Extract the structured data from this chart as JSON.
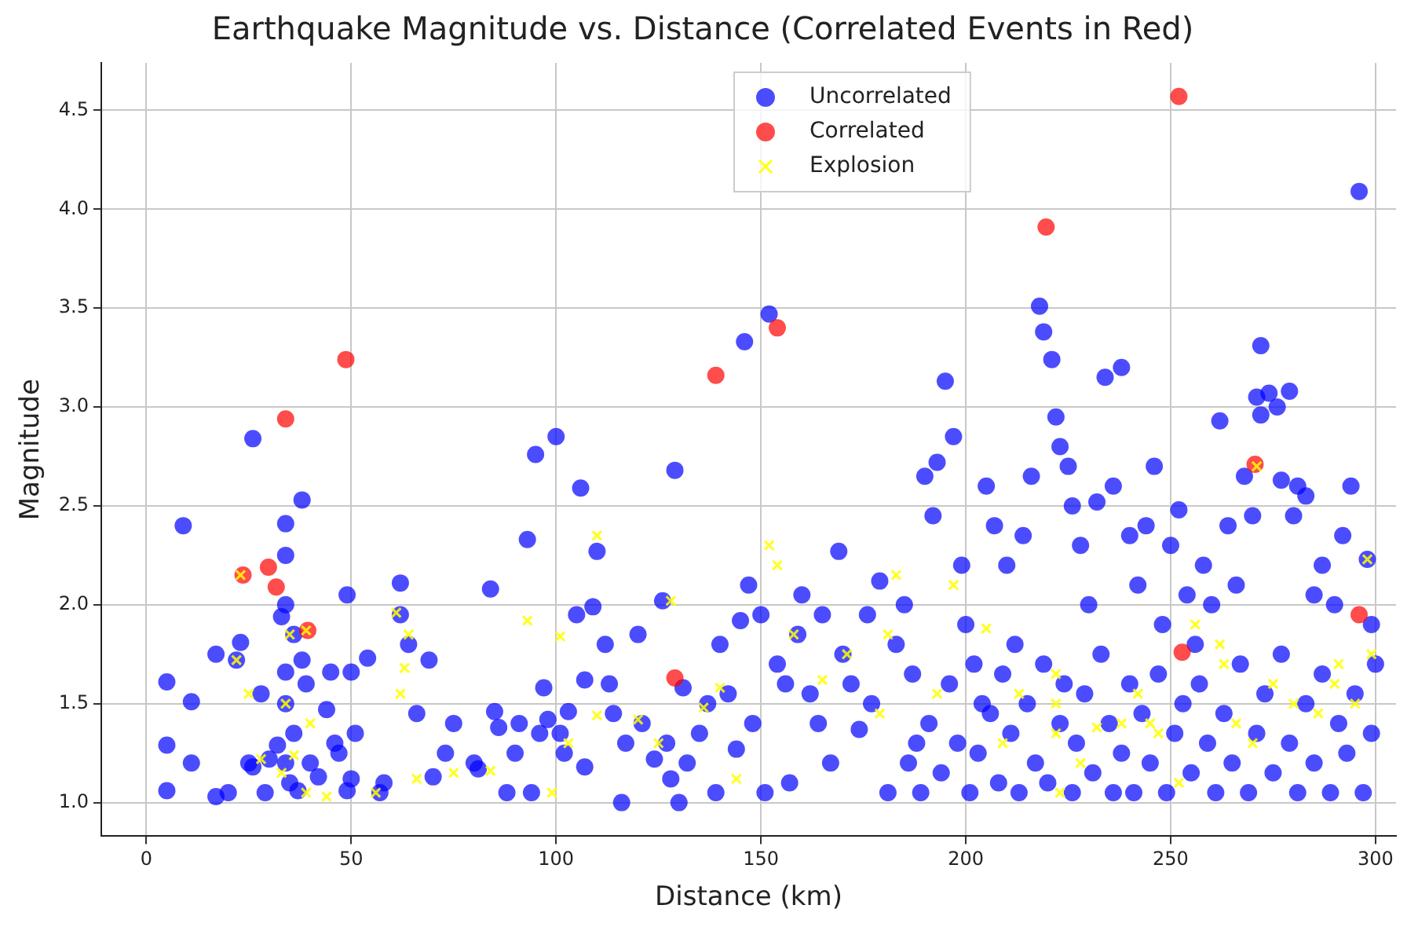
{
  "chart_data": {
    "type": "scatter",
    "title": "Earthquake Magnitude vs. Distance (Correlated Events in Red)",
    "xlabel": "Distance (km)",
    "ylabel": "Magnitude",
    "xlim": [
      -11,
      305
    ],
    "ylim": [
      0.83,
      4.74
    ],
    "xticks": [
      0,
      50,
      100,
      150,
      200,
      250,
      300
    ],
    "yticks": [
      {
        "value": 1,
        "label": "1.0"
      },
      1.5,
      {
        "value": 2,
        "label": "2.0"
      },
      2.5,
      {
        "value": 3,
        "label": "3.0"
      },
      3.5,
      {
        "value": 4,
        "label": "4.0"
      },
      4.5
    ],
    "grid": true,
    "legend": "top",
    "series": [
      {
        "name": "Uncorrelated",
        "color": "#0000ff",
        "marker": "circle",
        "x": [
          5,
          5,
          5,
          9,
          11,
          11,
          17,
          17,
          20,
          22,
          23,
          25,
          26,
          26,
          28,
          29,
          30,
          32,
          33,
          34,
          34,
          34,
          34,
          34,
          34,
          35,
          36,
          36,
          37,
          38,
          38,
          39,
          40,
          42,
          44,
          45,
          46,
          47,
          49,
          49,
          50,
          50,
          51,
          54,
          57,
          58,
          62,
          62,
          64,
          66,
          69,
          70,
          73,
          75,
          80,
          81,
          84,
          85,
          86,
          88,
          90,
          91,
          93,
          94,
          95,
          96,
          97,
          98,
          100,
          101,
          102,
          103,
          105,
          106,
          107,
          107,
          109,
          110,
          112,
          113,
          114,
          116,
          117,
          120,
          121,
          124,
          126,
          127,
          128,
          129,
          130,
          131,
          132,
          135,
          137,
          139,
          140,
          142,
          144,
          145,
          146,
          147,
          148,
          150,
          151,
          152,
          154,
          156,
          157,
          159,
          160,
          162,
          164,
          165,
          167,
          169,
          170,
          172,
          174,
          176,
          177,
          179,
          181,
          183,
          185,
          187,
          188,
          190,
          192,
          193,
          195,
          197,
          199,
          200,
          202,
          204,
          205,
          207,
          210,
          212,
          214,
          216,
          218,
          219,
          221,
          222,
          223,
          225,
          226,
          228,
          230,
          232,
          234,
          236,
          238,
          240,
          242,
          244,
          246,
          248,
          250,
          252,
          254,
          256,
          258,
          260,
          262,
          264,
          266,
          268,
          270,
          271,
          272,
          272,
          274,
          276,
          277,
          279,
          280,
          281,
          283,
          285,
          287,
          290,
          292,
          294,
          296,
          298,
          299,
          186,
          189,
          191,
          194,
          196,
          198,
          201,
          203,
          206,
          208,
          209,
          211,
          213,
          215,
          217,
          219,
          220,
          223,
          224,
          226,
          227,
          229,
          231,
          233,
          235,
          236,
          238,
          240,
          241,
          243,
          245,
          247,
          249,
          251,
          253,
          255,
          257,
          259,
          261,
          263,
          265,
          267,
          269,
          271,
          273,
          275,
          277,
          279,
          281,
          283,
          285,
          287,
          289,
          291,
          293,
          295,
          297,
          299,
          300
        ],
        "values": [
          1.61,
          1.29,
          1.06,
          2.4,
          1.51,
          1.2,
          1.75,
          1.03,
          1.05,
          1.72,
          1.81,
          1.2,
          1.18,
          2.84,
          1.55,
          1.05,
          1.22,
          1.29,
          1.94,
          2.41,
          2.25,
          2,
          1.66,
          1.5,
          1.2,
          1.1,
          1.35,
          1.85,
          1.06,
          2.53,
          1.72,
          1.6,
          1.2,
          1.13,
          1.47,
          1.66,
          1.3,
          1.25,
          2.05,
          1.06,
          1.66,
          1.12,
          1.35,
          1.73,
          1.05,
          1.1,
          1.95,
          2.11,
          1.8,
          1.45,
          1.72,
          1.13,
          1.25,
          1.4,
          1.2,
          1.17,
          2.08,
          1.46,
          1.38,
          1.05,
          1.25,
          1.4,
          2.33,
          1.05,
          2.76,
          1.35,
          1.58,
          1.42,
          2.85,
          1.35,
          1.25,
          1.46,
          1.95,
          2.59,
          1.62,
          1.18,
          1.99,
          2.27,
          1.8,
          1.6,
          1.45,
          1,
          1.3,
          1.85,
          1.4,
          1.22,
          2.02,
          1.3,
          1.12,
          2.68,
          1,
          1.58,
          1.2,
          1.35,
          1.5,
          1.05,
          1.8,
          1.55,
          1.27,
          1.92,
          3.33,
          2.1,
          1.4,
          1.95,
          1.05,
          3.47,
          1.7,
          1.6,
          1.1,
          1.85,
          2.05,
          1.55,
          1.4,
          1.95,
          1.2,
          2.27,
          1.75,
          1.6,
          1.37,
          1.95,
          1.5,
          2.12,
          1.05,
          1.8,
          2,
          1.65,
          1.3,
          2.65,
          2.45,
          2.72,
          3.13,
          2.85,
          2.2,
          1.9,
          1.7,
          1.5,
          2.6,
          2.4,
          2.2,
          1.8,
          2.35,
          2.65,
          3.51,
          3.38,
          3.24,
          2.95,
          2.8,
          2.7,
          2.5,
          2.3,
          2,
          2.52,
          3.15,
          2.6,
          3.2,
          2.35,
          2.1,
          2.4,
          2.7,
          1.9,
          2.3,
          2.48,
          2.05,
          1.8,
          2.2,
          2,
          2.93,
          2.4,
          2.1,
          2.65,
          2.45,
          3.05,
          3.31,
          2.96,
          3.07,
          3,
          2.63,
          3.08,
          2.45,
          2.6,
          2.55,
          2.05,
          2.2,
          2,
          2.35,
          2.6,
          4.09,
          2.23,
          1.9,
          1.2,
          1.05,
          1.4,
          1.15,
          1.6,
          1.3,
          1.05,
          1.25,
          1.45,
          1.1,
          1.65,
          1.35,
          1.05,
          1.5,
          1.2,
          1.7,
          1.1,
          1.4,
          1.6,
          1.05,
          1.3,
          1.55,
          1.15,
          1.75,
          1.4,
          1.05,
          1.25,
          1.6,
          1.05,
          1.45,
          1.2,
          1.65,
          1.05,
          1.35,
          1.5,
          1.15,
          1.6,
          1.3,
          1.05,
          1.45,
          1.2,
          1.7,
          1.05,
          1.35,
          1.55,
          1.15,
          1.75,
          1.3,
          1.05,
          1.5,
          1.2,
          1.65,
          1.05,
          1.4,
          1.25,
          1.55,
          1.05,
          1.35,
          1.7
        ]
      },
      {
        "name": "Correlated",
        "color": "#ff0000",
        "marker": "circle",
        "x": [
          23.6,
          29.8,
          31.7,
          34,
          39.4,
          48.7,
          129,
          139,
          154,
          219.6,
          252,
          252.8,
          270.6,
          296
        ],
        "values": [
          2.15,
          2.19,
          2.09,
          2.94,
          1.87,
          3.24,
          1.63,
          3.16,
          3.4,
          3.91,
          4.57,
          1.76,
          2.71,
          1.95
        ]
      },
      {
        "name": "Explosion",
        "color": "#ffff00",
        "marker": "cross",
        "x": [
          23,
          39,
          271,
          22,
          25,
          28,
          33,
          34,
          35,
          36,
          39,
          40,
          44,
          56,
          61,
          62,
          63,
          64,
          66,
          75,
          84,
          93,
          99,
          101,
          103,
          110,
          110,
          120,
          125,
          128,
          136,
          140,
          144,
          152,
          154,
          158,
          165,
          171,
          179,
          181,
          183,
          193,
          197,
          205,
          209,
          213,
          222,
          222,
          222,
          223,
          228,
          232,
          238,
          242,
          245,
          247,
          252,
          256,
          262,
          263,
          266,
          270,
          275,
          280,
          286,
          290,
          291,
          295,
          298,
          299
        ],
        "values": [
          2.15,
          1.87,
          2.7,
          1.72,
          1.55,
          1.22,
          1.15,
          1.5,
          1.85,
          1.24,
          1.05,
          1.4,
          1.03,
          1.05,
          1.96,
          1.55,
          1.68,
          1.85,
          1.12,
          1.15,
          1.16,
          1.92,
          1.05,
          1.84,
          1.3,
          2.35,
          1.44,
          1.42,
          1.3,
          2.02,
          1.48,
          1.58,
          1.12,
          2.3,
          2.2,
          1.85,
          1.62,
          1.75,
          1.45,
          1.85,
          2.15,
          1.55,
          2.1,
          1.88,
          1.3,
          1.55,
          1.65,
          1.5,
          1.35,
          1.05,
          1.2,
          1.38,
          1.4,
          1.55,
          1.4,
          1.35,
          1.1,
          1.9,
          1.8,
          1.7,
          1.4,
          1.3,
          1.6,
          1.5,
          1.45,
          1.6,
          1.7,
          1.5,
          2.23,
          1.75
        ]
      }
    ]
  }
}
